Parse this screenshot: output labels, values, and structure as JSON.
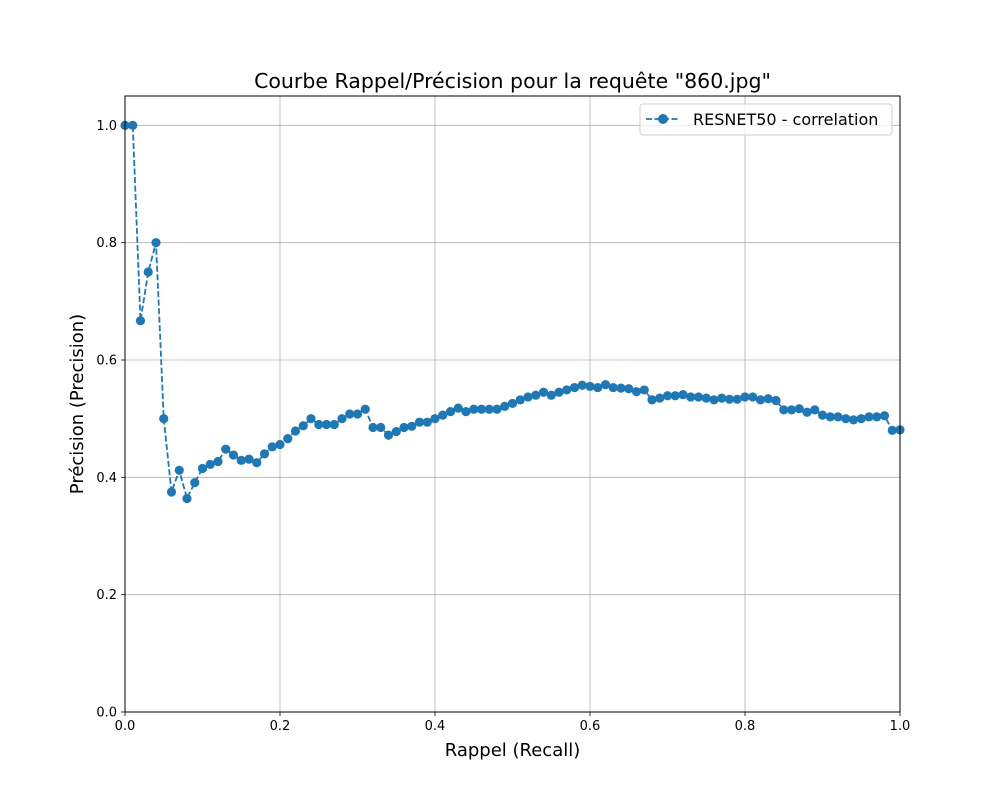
{
  "chart_data": {
    "type": "line",
    "title": "Courbe Rappel/Précision pour la requête \"860.jpg\"",
    "xlabel": "Rappel (Recall)",
    "ylabel": "Précision (Precision)",
    "xlim": [
      0,
      1
    ],
    "ylim": [
      0,
      1.05
    ],
    "xticks": [
      0.0,
      0.2,
      0.4,
      0.6,
      0.8,
      1.0
    ],
    "xtick_labels": [
      "0.0",
      "0.2",
      "0.4",
      "0.6",
      "0.8",
      "1.0"
    ],
    "yticks": [
      0.0,
      0.2,
      0.4,
      0.6,
      0.8,
      1.0
    ],
    "ytick_labels": [
      "0.0",
      "0.2",
      "0.4",
      "0.6",
      "0.8",
      "1.0"
    ],
    "grid": true,
    "legend_position": "top-right",
    "series": [
      {
        "name": "RESNET50 - correlation",
        "color": "#1f77b4",
        "line_style": "dashed",
        "marker": "circle",
        "x": [
          0.0,
          0.01,
          0.02,
          0.03,
          0.04,
          0.05,
          0.06,
          0.07,
          0.08,
          0.09,
          0.1,
          0.11,
          0.12,
          0.13,
          0.14,
          0.15,
          0.16,
          0.17,
          0.18,
          0.19,
          0.2,
          0.21,
          0.22,
          0.23,
          0.24,
          0.25,
          0.26,
          0.27,
          0.28,
          0.29,
          0.3,
          0.31,
          0.32,
          0.33,
          0.34,
          0.35,
          0.36,
          0.37,
          0.38,
          0.39,
          0.4,
          0.41,
          0.42,
          0.43,
          0.44,
          0.45,
          0.46,
          0.47,
          0.48,
          0.49,
          0.5,
          0.51,
          0.52,
          0.53,
          0.54,
          0.55,
          0.56,
          0.57,
          0.58,
          0.59,
          0.6,
          0.61,
          0.62,
          0.63,
          0.64,
          0.65,
          0.66,
          0.67,
          0.68,
          0.69,
          0.7,
          0.71,
          0.72,
          0.73,
          0.74,
          0.75,
          0.76,
          0.77,
          0.78,
          0.79,
          0.8,
          0.81,
          0.82,
          0.83,
          0.84,
          0.85,
          0.86,
          0.87,
          0.88,
          0.89,
          0.9,
          0.91,
          0.92,
          0.93,
          0.94,
          0.95,
          0.96,
          0.97,
          0.98,
          0.99,
          1.0
        ],
        "y": [
          1.0,
          1.0,
          0.667,
          0.75,
          0.8,
          0.5,
          0.375,
          0.412,
          0.364,
          0.391,
          0.415,
          0.422,
          0.427,
          0.448,
          0.438,
          0.429,
          0.431,
          0.425,
          0.44,
          0.452,
          0.456,
          0.466,
          0.479,
          0.488,
          0.5,
          0.49,
          0.49,
          0.49,
          0.5,
          0.508,
          0.508,
          0.516,
          0.485,
          0.485,
          0.472,
          0.478,
          0.485,
          0.487,
          0.494,
          0.494,
          0.5,
          0.506,
          0.512,
          0.518,
          0.512,
          0.516,
          0.516,
          0.516,
          0.516,
          0.521,
          0.526,
          0.532,
          0.537,
          0.54,
          0.545,
          0.54,
          0.545,
          0.549,
          0.553,
          0.557,
          0.555,
          0.553,
          0.558,
          0.553,
          0.552,
          0.551,
          0.546,
          0.549,
          0.532,
          0.535,
          0.539,
          0.539,
          0.541,
          0.537,
          0.537,
          0.535,
          0.532,
          0.535,
          0.533,
          0.533,
          0.537,
          0.537,
          0.532,
          0.534,
          0.531,
          0.515,
          0.515,
          0.517,
          0.511,
          0.515,
          0.506,
          0.503,
          0.503,
          0.5,
          0.498,
          0.5,
          0.503,
          0.503,
          0.505,
          0.48,
          0.481
        ]
      }
    ]
  }
}
